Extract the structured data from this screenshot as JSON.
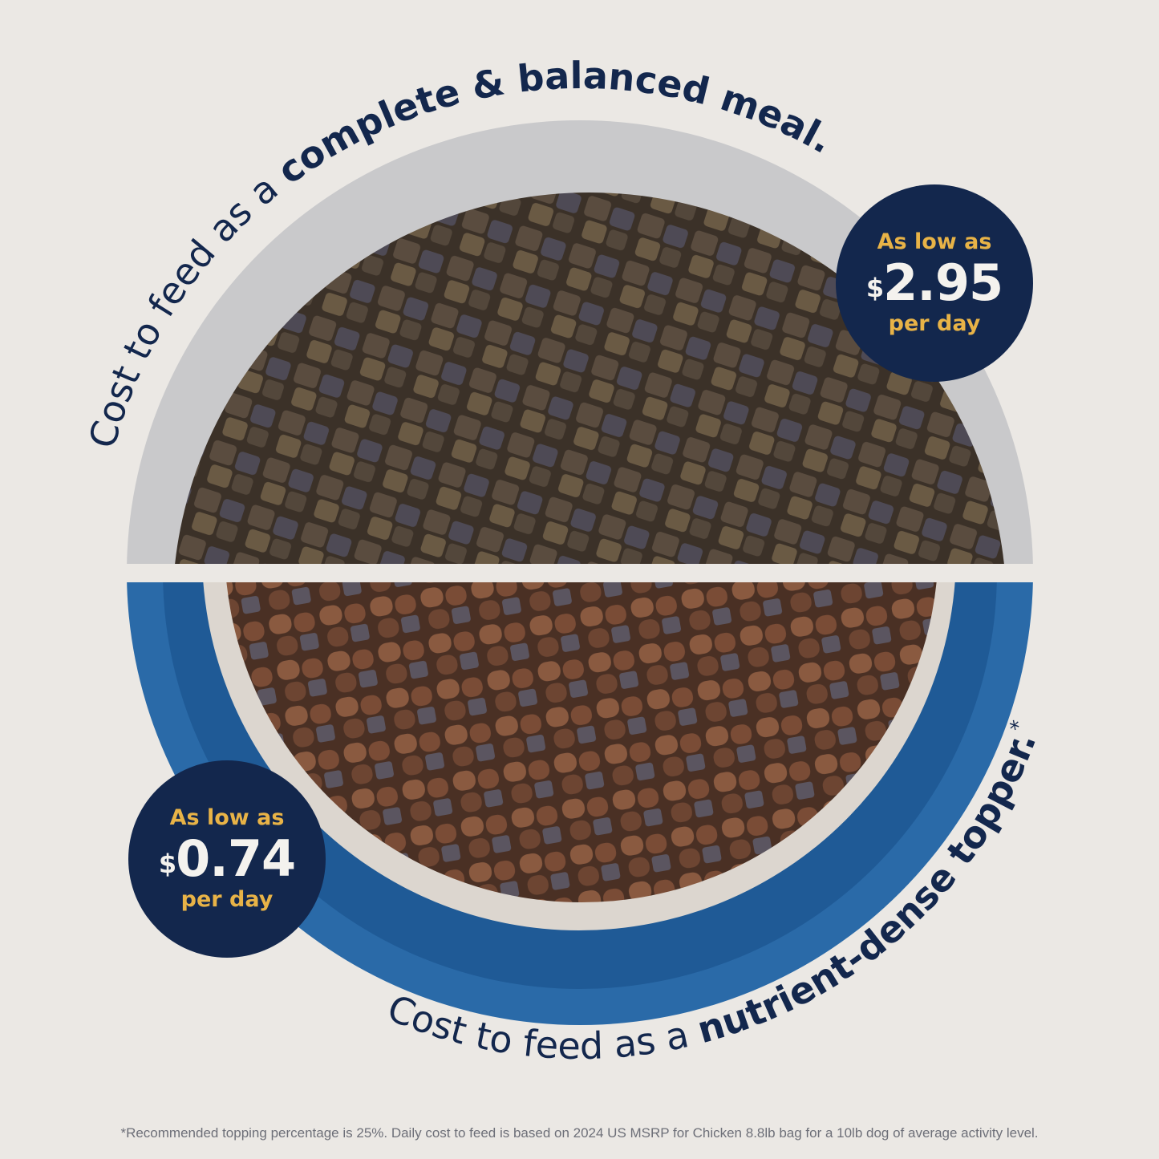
{
  "top_arc": {
    "prefix": "Cost to feed as a ",
    "emphasis": "complete & balanced meal."
  },
  "bottom_arc": {
    "prefix": "Cost to feed as a ",
    "emphasis": "nutrient-dense topper.",
    "asterisk": "*"
  },
  "badge_meal": {
    "line1": "As low as",
    "currency": "$",
    "price": "2.95",
    "line3": "per day"
  },
  "badge_topper": {
    "line1": "As low as",
    "currency": "$",
    "price": "0.74",
    "line3": "per day"
  },
  "footnote": "*Recommended topping percentage is 25%. Daily cost to feed is based on 2024 US MSRP for Chicken 8.8lb bag for a 10lb dog of average activity level.",
  "colors": {
    "navy": "#13274d",
    "gold": "#e8b347",
    "bowl_blue": "#2a6aa8",
    "background": "#ebe8e4"
  }
}
